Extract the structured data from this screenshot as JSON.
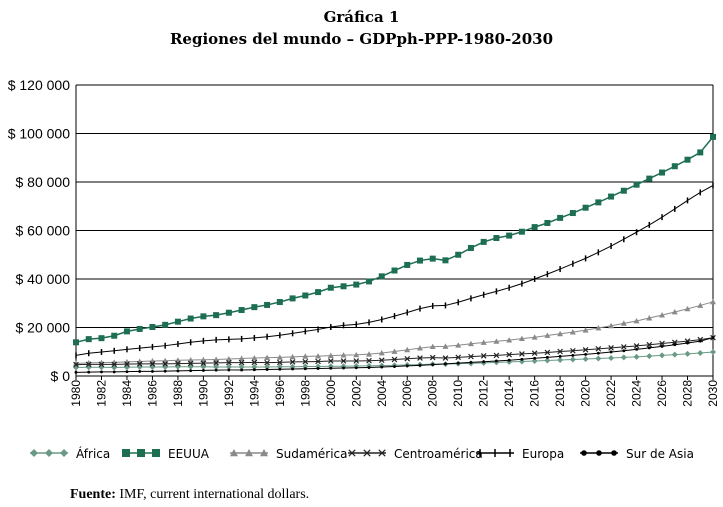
{
  "chart_data": {
    "type": "line",
    "title": "Gráfica 1",
    "subtitle": "Regiones del mundo – GDPph-PPP-1980-2030",
    "source_label": "Fuente:",
    "source_text": " IMF, current international dollars.",
    "ylim": [
      0,
      120000
    ],
    "yticks": [
      0,
      20000,
      40000,
      60000,
      80000,
      100000,
      120000
    ],
    "ytick_labels": [
      "$ 0",
      "$ 20 000",
      "$ 40 000",
      "$ 60 000",
      "$ 80 000",
      "$ 100 000",
      "$ 120 000"
    ],
    "xlim": [
      1980,
      2030
    ],
    "xticks": [
      1980,
      1982,
      1984,
      1986,
      1988,
      1990,
      1992,
      1994,
      1996,
      1998,
      2000,
      2002,
      2004,
      2006,
      2008,
      2010,
      2012,
      2014,
      2016,
      2018,
      2020,
      2022,
      2024,
      2026,
      2028,
      2030
    ],
    "x": [
      1980,
      1981,
      1982,
      1983,
      1984,
      1985,
      1986,
      1987,
      1988,
      1989,
      1990,
      1991,
      1992,
      1993,
      1994,
      1995,
      1996,
      1997,
      1998,
      1999,
      2000,
      2001,
      2002,
      2003,
      2004,
      2005,
      2006,
      2007,
      2008,
      2009,
      2010,
      2011,
      2012,
      2013,
      2014,
      2015,
      2016,
      2017,
      2018,
      2019,
      2020,
      2021,
      2022,
      2023,
      2024,
      2025,
      2026,
      2027,
      2028,
      2029,
      2030
    ],
    "series": [
      {
        "name": "África",
        "color": "#6a9a86",
        "marker": "diamond",
        "values": [
          3500,
          3600,
          3600,
          3500,
          3600,
          3700,
          3700,
          3700,
          3800,
          3800,
          3800,
          3700,
          3700,
          3700,
          3700,
          3700,
          3800,
          3800,
          3900,
          3900,
          4000,
          4000,
          4100,
          4200,
          4300,
          4400,
          4600,
          4700,
          4900,
          4900,
          5100,
          5200,
          5400,
          5600,
          5800,
          6000,
          6200,
          6400,
          6600,
          6800,
          7000,
          7200,
          7400,
          7700,
          7900,
          8200,
          8500,
          8800,
          9100,
          9500,
          9900
        ]
      },
      {
        "name": "EEUUA",
        "color": "#1e6e52",
        "marker": "square",
        "values": [
          13900,
          15200,
          15600,
          16600,
          18400,
          19400,
          20200,
          21100,
          22400,
          23700,
          24600,
          25100,
          26100,
          27200,
          28400,
          29300,
          30500,
          32000,
          33200,
          34600,
          36400,
          37000,
          37700,
          39000,
          41100,
          43500,
          45800,
          47600,
          48400,
          47700,
          50000,
          52800,
          55300,
          56900,
          57900,
          59500,
          61400,
          63100,
          65200,
          67200,
          69400,
          71600,
          74000,
          76400,
          78900,
          81400,
          83900,
          86500,
          89200,
          92200,
          98600
        ]
      },
      {
        "name": "Sudamérica",
        "color": "#8a8a8a",
        "marker": "triangle",
        "values": [
          5200,
          5400,
          5500,
          5600,
          5800,
          6000,
          6200,
          6300,
          6500,
          6600,
          6700,
          6800,
          7000,
          7200,
          7400,
          7600,
          7700,
          7900,
          8100,
          8200,
          8400,
          8600,
          8700,
          9000,
          9500,
          10100,
          10800,
          11500,
          12100,
          12200,
          12700,
          13300,
          13800,
          14300,
          14800,
          15400,
          16000,
          16700,
          17400,
          18100,
          18900,
          19800,
          20700,
          21700,
          22700,
          23900,
          25100,
          26400,
          27700,
          29100,
          30600
        ]
      },
      {
        "name": "Centroamérica",
        "color": "#222222",
        "marker": "x",
        "values": [
          4700,
          4800,
          4800,
          4800,
          4900,
          5000,
          5000,
          5000,
          5100,
          5200,
          5300,
          5400,
          5500,
          5500,
          5600,
          5500,
          5600,
          5800,
          5900,
          6000,
          6200,
          6200,
          6200,
          6300,
          6500,
          6800,
          7100,
          7400,
          7600,
          7400,
          7700,
          8000,
          8300,
          8500,
          8800,
          9100,
          9400,
          9700,
          10100,
          10400,
          10800,
          11200,
          11600,
          12000,
          12400,
          12900,
          13400,
          13900,
          14400,
          15000,
          15800
        ]
      },
      {
        "name": "Europa",
        "color": "#000000",
        "marker": "bar",
        "values": [
          8500,
          9400,
          9900,
          10400,
          11000,
          11500,
          12000,
          12500,
          13200,
          13900,
          14500,
          14900,
          15100,
          15300,
          15700,
          16200,
          16800,
          17600,
          18400,
          19200,
          20200,
          20900,
          21300,
          22100,
          23300,
          24700,
          26200,
          27800,
          28900,
          29100,
          30400,
          32000,
          33500,
          34900,
          36400,
          38100,
          40000,
          42000,
          44100,
          46300,
          48500,
          51000,
          53600,
          56400,
          59300,
          62300,
          65500,
          68900,
          72400,
          75700,
          78600
        ]
      },
      {
        "name": "Sur de Asia",
        "color": "#000000",
        "marker": "circle",
        "values": [
          1500,
          1600,
          1700,
          1700,
          1800,
          1900,
          1900,
          2000,
          2100,
          2200,
          2300,
          2400,
          2500,
          2500,
          2600,
          2700,
          2800,
          2900,
          3000,
          3100,
          3200,
          3300,
          3400,
          3500,
          3700,
          3900,
          4200,
          4400,
          4700,
          5000,
          5300,
          5600,
          5900,
          6200,
          6500,
          6900,
          7300,
          7700,
          8100,
          8500,
          8900,
          9400,
          9900,
          10400,
          11000,
          11600,
          12200,
          12900,
          13600,
          14400,
          15800
        ]
      }
    ],
    "legend_position": "bottom"
  }
}
